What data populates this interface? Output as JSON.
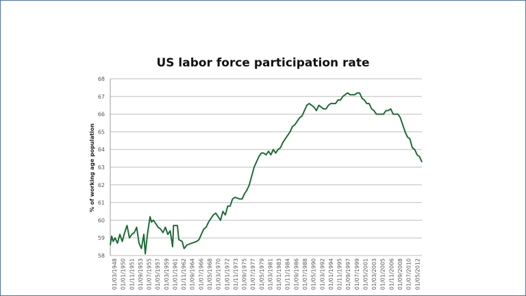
{
  "chart_data": {
    "type": "line",
    "title": "US labor force participation rate",
    "xlabel": "",
    "ylabel": "% of working age population",
    "ylim": [
      58,
      68
    ],
    "yticks": [
      58,
      59,
      60,
      61,
      62,
      63,
      64,
      65,
      66,
      67,
      68
    ],
    "grid": true,
    "legend": "none",
    "line_color": "#1a6b34",
    "x_tick_labels": [
      "01/03/1948",
      "01/01/1950",
      "01/11/1951",
      "01/09/1953",
      "01/07/1955",
      "01/05/1957",
      "01/03/1959",
      "01/01/1961",
      "01/11/1962",
      "01/09/1964",
      "01/07/1966",
      "01/05/1968",
      "01/03/1970",
      "01/01/1972",
      "01/11/1973",
      "01/09/1975",
      "01/07/1977",
      "01/05/1979",
      "01/03/1981",
      "01/01/1983",
      "01/11/1984",
      "01/09/1986",
      "01/07/1988",
      "01/05/1990",
      "01/03/1992",
      "01/01/1994",
      "01/11/1995",
      "01/09/1997",
      "01/07/1999",
      "01/05/2001",
      "01/03/2003",
      "01/01/2005",
      "01/11/2006",
      "01/09/2008",
      "01/07/2010",
      "01/05/2012"
    ],
    "series": [
      {
        "x": [
          1948.0,
          1948.3,
          1948.6,
          1949.0,
          1949.5,
          1950.0,
          1950.5,
          1951.0,
          1951.5,
          1952.0,
          1952.5,
          1953.0,
          1953.5,
          1954.0,
          1954.5,
          1955.0,
          1955.3,
          1955.8,
          1956.3,
          1956.6,
          1957.0,
          1957.5,
          1958.0,
          1958.5,
          1959.0,
          1959.5,
          1960.0,
          1960.5,
          1961.0,
          1961.2,
          1962.0,
          1962.3,
          1963.0,
          1963.4,
          1964.0,
          1965.0,
          1966.0,
          1966.5,
          1967.0,
          1967.5,
          1968.0,
          1968.5,
          1969.0,
          1969.5,
          1970.0,
          1970.5,
          1971.0,
          1971.5,
          1972.0,
          1972.5,
          1973.0,
          1973.5,
          1974.0,
          1975.0,
          1975.5,
          1976.0,
          1976.5,
          1977.0,
          1977.5,
          1978.0,
          1978.5,
          1979.0,
          1979.5,
          1980.0,
          1980.5,
          1981.0,
          1981.5,
          1982.0,
          1982.5,
          1983.0,
          1983.5,
          1984.0,
          1984.5,
          1985.0,
          1985.5,
          1986.0,
          1986.5,
          1987.0,
          1987.5,
          1988.0,
          1988.5,
          1989.0,
          1989.5,
          1990.0,
          1990.5,
          1991.0,
          1991.5,
          1992.0,
          1992.5,
          1993.0,
          1993.5,
          1994.0,
          1994.5,
          1995.0,
          1995.5,
          1996.0,
          1996.5,
          1997.0,
          1997.5,
          1998.0,
          1998.5,
          1999.0,
          1999.5,
          2000.0,
          2000.5,
          2001.0,
          2001.5,
          2002.0,
          2002.5,
          2003.0,
          2003.5,
          2004.0,
          2004.5,
          2005.0,
          2005.5,
          2006.0,
          2006.5,
          2007.0,
          2007.5,
          2008.0,
          2008.5,
          2009.0,
          2009.5,
          2010.0,
          2010.5,
          2011.0,
          2011.5,
          2012.0,
          2012.5,
          2013.0
        ],
        "values": [
          58.6,
          59.1,
          58.8,
          59.0,
          58.7,
          59.2,
          58.8,
          59.3,
          59.7,
          59.0,
          59.2,
          59.3,
          59.6,
          58.7,
          58.4,
          59.2,
          58.1,
          59.3,
          60.2,
          59.9,
          60.0,
          59.8,
          59.6,
          59.5,
          59.3,
          59.6,
          59.2,
          59.4,
          58.5,
          59.7,
          59.7,
          58.9,
          58.8,
          58.4,
          58.6,
          58.7,
          58.8,
          58.9,
          59.2,
          59.5,
          59.6,
          59.9,
          60.1,
          60.3,
          60.4,
          60.2,
          60.0,
          60.5,
          60.3,
          60.8,
          60.8,
          61.2,
          61.3,
          61.2,
          61.2,
          61.5,
          61.7,
          62.0,
          62.5,
          63.0,
          63.3,
          63.6,
          63.8,
          63.8,
          63.7,
          63.9,
          63.7,
          64.0,
          63.8,
          64.0,
          64.1,
          64.4,
          64.6,
          64.8,
          65.0,
          65.3,
          65.4,
          65.6,
          65.8,
          65.9,
          66.2,
          66.5,
          66.6,
          66.5,
          66.4,
          66.2,
          66.5,
          66.4,
          66.3,
          66.3,
          66.5,
          66.6,
          66.6,
          66.6,
          66.8,
          66.8,
          67.0,
          67.1,
          67.2,
          67.1,
          67.1,
          67.1,
          67.2,
          67.2,
          66.9,
          66.8,
          66.6,
          66.6,
          66.3,
          66.2,
          66.0,
          66.0,
          66.0,
          66.0,
          66.2,
          66.2,
          66.3,
          66.0,
          66.0,
          66.0,
          65.8,
          65.4,
          65.0,
          64.7,
          64.6,
          64.1,
          64.0,
          63.7,
          63.6,
          63.3
        ]
      }
    ]
  }
}
